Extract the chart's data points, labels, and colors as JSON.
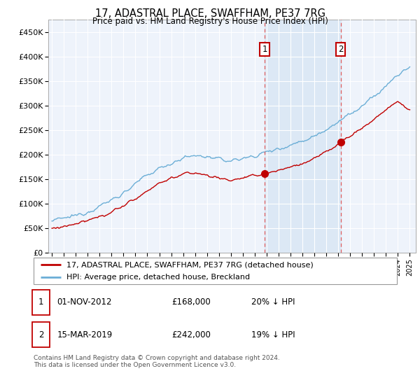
{
  "title": "17, ADASTRAL PLACE, SWAFFHAM, PE37 7RG",
  "subtitle": "Price paid vs. HM Land Registry's House Price Index (HPI)",
  "hpi_color": "#6baed6",
  "price_color": "#c00000",
  "vline_color": "#e06060",
  "annotation_box_color": "#c00000",
  "background_color": "#eef3fb",
  "shade_color": "#dce8f5",
  "ylim": [
    0,
    475000
  ],
  "yticks": [
    0,
    50000,
    100000,
    150000,
    200000,
    250000,
    300000,
    350000,
    400000,
    450000
  ],
  "purchase1": {
    "x_year": 2012.83,
    "price": 168000,
    "label": "1"
  },
  "purchase2": {
    "x_year": 2019.21,
    "price": 242000,
    "label": "2"
  },
  "legend_line1": "17, ADASTRAL PLACE, SWAFFHAM, PE37 7RG (detached house)",
  "legend_line2": "HPI: Average price, detached house, Breckland",
  "table_row1": [
    "1",
    "01-NOV-2012",
    "£168,000",
    "20% ↓ HPI"
  ],
  "table_row2": [
    "2",
    "15-MAR-2019",
    "£242,000",
    "19% ↓ HPI"
  ],
  "footnote": "Contains HM Land Registry data © Crown copyright and database right 2024.\nThis data is licensed under the Open Government Licence v3.0.",
  "xlim_start": 1994.7,
  "xlim_end": 2025.5,
  "hpi_base": [
    65000,
    70000,
    76000,
    84000,
    95000,
    108000,
    122000,
    140000,
    158000,
    172000,
    183000,
    193000,
    198000,
    196000,
    190000,
    188000,
    192000,
    198000,
    205000,
    212000,
    220000,
    228000,
    238000,
    252000,
    268000,
    282000,
    298000,
    318000,
    340000,
    362000,
    378000
  ],
  "price_base": [
    50000,
    54000,
    58000,
    65000,
    73000,
    84000,
    96000,
    110000,
    127000,
    142000,
    152000,
    160000,
    163000,
    158000,
    152000,
    148000,
    152000,
    157000,
    162000,
    168000,
    175000,
    182000,
    192000,
    206000,
    222000,
    238000,
    254000,
    272000,
    292000,
    308000,
    290000
  ]
}
